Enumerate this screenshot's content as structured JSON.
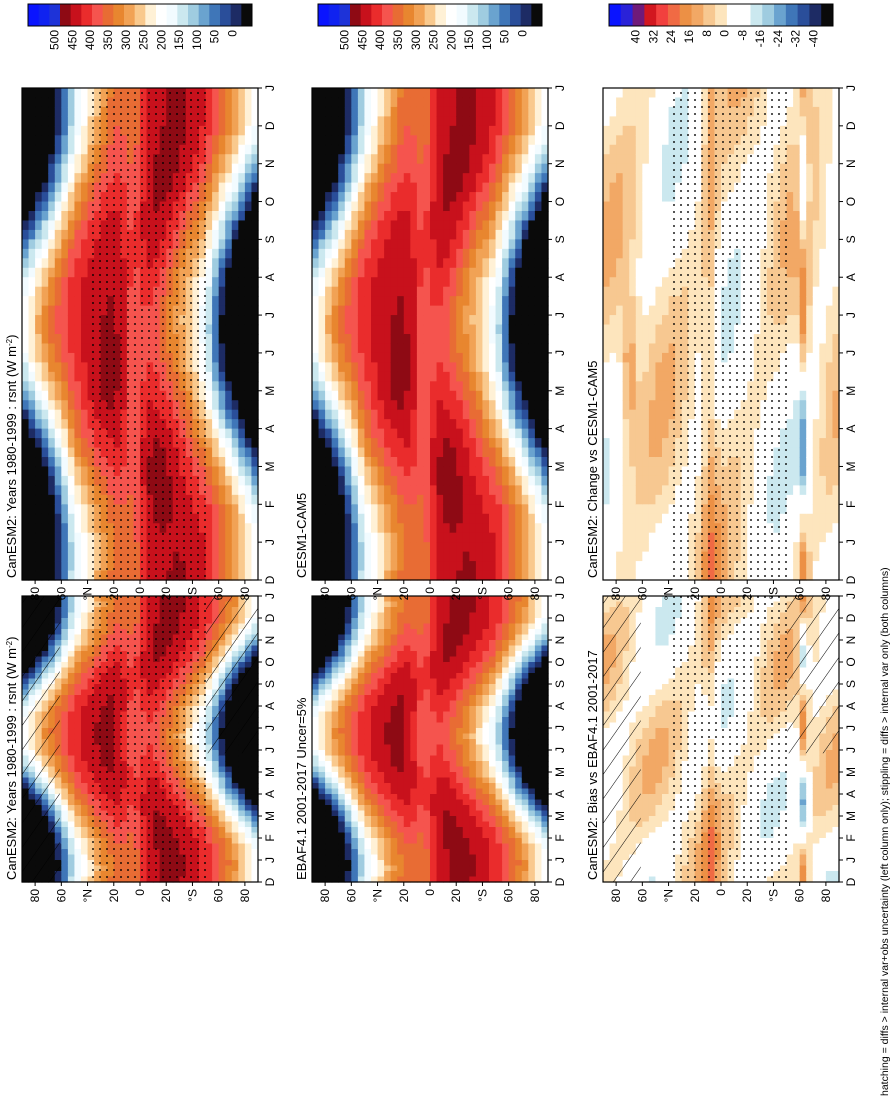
{
  "figure": {
    "footer": "hatching = diffs > internal var+obs uncertainty (left column only); stippling = diffs > internal var only (both columns)"
  },
  "colors": {
    "abs_levels": [
      "#0a0a0a",
      "#1d2b64",
      "#2a4e9a",
      "#3f76b8",
      "#6aa3cf",
      "#9fcce0",
      "#cbe8ef",
      "#f2fbff",
      "#ffffff",
      "#fff1d6",
      "#f9c98d",
      "#f1a255",
      "#e8862f",
      "#e86c34",
      "#f5544e",
      "#ea2c2c",
      "#c8111c",
      "#8e0a14",
      "#1e33d8",
      "#0f22f0",
      "#0a14ff"
    ],
    "diff_levels": [
      "#0a0a0a",
      "#1d2b64",
      "#2a4e9a",
      "#3f76b8",
      "#6aa3cf",
      "#9fcce0",
      "#cbe8ef",
      "#ffffff",
      "#ffffff",
      "#fde5bd",
      "#f7c891",
      "#f2a865",
      "#ec9045",
      "#f06a44",
      "#f2403e",
      "#d2171f",
      "#6f1a7a",
      "#2a22d8",
      "#0a14ff"
    ]
  },
  "chart_data": [
    {
      "id": "p1",
      "type": "heatmap",
      "title": "CanESM2: Years 1980-1999 : rsnt (W m",
      "title_sup": "-2",
      "title_end": ")",
      "x_ticks": [
        "D",
        "J",
        "F",
        "M",
        "A",
        "M",
        "J",
        "J",
        "A",
        "S",
        "O",
        "N",
        "D",
        "J"
      ],
      "y_ticks": [
        "80",
        "60",
        "°N",
        "20",
        "0",
        "20",
        "°S",
        "60",
        "80"
      ],
      "colorbar_ticks": [
        "500",
        "450",
        "400",
        "350",
        "300",
        "250",
        "200",
        "150",
        "100",
        "50",
        "0"
      ],
      "field": "absolute",
      "hatching": true,
      "stippling": true
    },
    {
      "id": "p2",
      "type": "heatmap",
      "title": "CanESM2: Years 1980-1999 : rsnt (W m",
      "title_sup": "-2",
      "title_end": ")",
      "x_ticks": [
        "D",
        "J",
        "F",
        "M",
        "A",
        "M",
        "J",
        "J",
        "A",
        "S",
        "O",
        "N",
        "D",
        "J"
      ],
      "y_ticks": [
        "80",
        "60",
        "°N",
        "20",
        "0",
        "20",
        "°S",
        "60",
        "80"
      ],
      "colorbar_ticks": [
        "500",
        "450",
        "400",
        "350",
        "300",
        "250",
        "200",
        "150",
        "100",
        "50",
        "0"
      ],
      "field": "absolute",
      "hatching": false,
      "stippling": true
    },
    {
      "id": "p3",
      "type": "heatmap",
      "title": "EBAF4.1 2001-2017 Uncer=5%",
      "title_sup": "",
      "title_end": "",
      "x_ticks": [
        "D",
        "J",
        "F",
        "M",
        "A",
        "M",
        "J",
        "J",
        "A",
        "S",
        "O",
        "N",
        "D",
        "J"
      ],
      "y_ticks": [
        "80",
        "60",
        "°N",
        "20",
        "0",
        "20",
        "°S",
        "60",
        "80"
      ],
      "colorbar_ticks": [
        "500",
        "450",
        "400",
        "350",
        "300",
        "250",
        "200",
        "150",
        "100",
        "50",
        "0"
      ],
      "field": "absolute",
      "hatching": false,
      "stippling": false
    },
    {
      "id": "p4",
      "type": "heatmap",
      "title": "CESM1-CAM5",
      "title_sup": "",
      "title_end": "",
      "x_ticks": [
        "D",
        "J",
        "F",
        "M",
        "A",
        "M",
        "J",
        "J",
        "A",
        "S",
        "O",
        "N",
        "D",
        "J"
      ],
      "y_ticks": [
        "80",
        "60",
        "°N",
        "20",
        "0",
        "20",
        "°S",
        "60",
        "80"
      ],
      "colorbar_ticks": [
        "500",
        "450",
        "400",
        "350",
        "300",
        "250",
        "200",
        "150",
        "100",
        "50",
        "0"
      ],
      "field": "absolute",
      "hatching": false,
      "stippling": false
    },
    {
      "id": "p5",
      "type": "heatmap",
      "title": "CanESM2: Bias vs EBAF4.1 2001-2017",
      "title_sup": "",
      "title_end": "",
      "x_ticks": [
        "D",
        "J",
        "F",
        "M",
        "A",
        "M",
        "J",
        "J",
        "A",
        "S",
        "O",
        "N",
        "D",
        "J"
      ],
      "y_ticks": [
        "80",
        "60",
        "°N",
        "20",
        "0",
        "20",
        "°S",
        "60",
        "80"
      ],
      "colorbar_ticks": [
        "40",
        "32",
        "24",
        "16",
        "8",
        "0",
        "-8",
        "-16",
        "-24",
        "-32",
        "-40"
      ],
      "field": "difference",
      "hatching": true,
      "stippling": true
    },
    {
      "id": "p6",
      "type": "heatmap",
      "title": "CanESM2: Change vs CESM1-CAM5",
      "title_sup": "",
      "title_end": "",
      "x_ticks": [
        "D",
        "J",
        "F",
        "M",
        "A",
        "M",
        "J",
        "J",
        "A",
        "S",
        "O",
        "N",
        "D",
        "J"
      ],
      "y_ticks": [
        "80",
        "60",
        "°N",
        "20",
        "0",
        "20",
        "°S",
        "60",
        "80"
      ],
      "colorbar_ticks": [
        "40",
        "32",
        "24",
        "16",
        "8",
        "0",
        "-8",
        "-16",
        "-24",
        "-32",
        "-40"
      ],
      "field": "difference",
      "hatching": false,
      "stippling": true
    }
  ]
}
